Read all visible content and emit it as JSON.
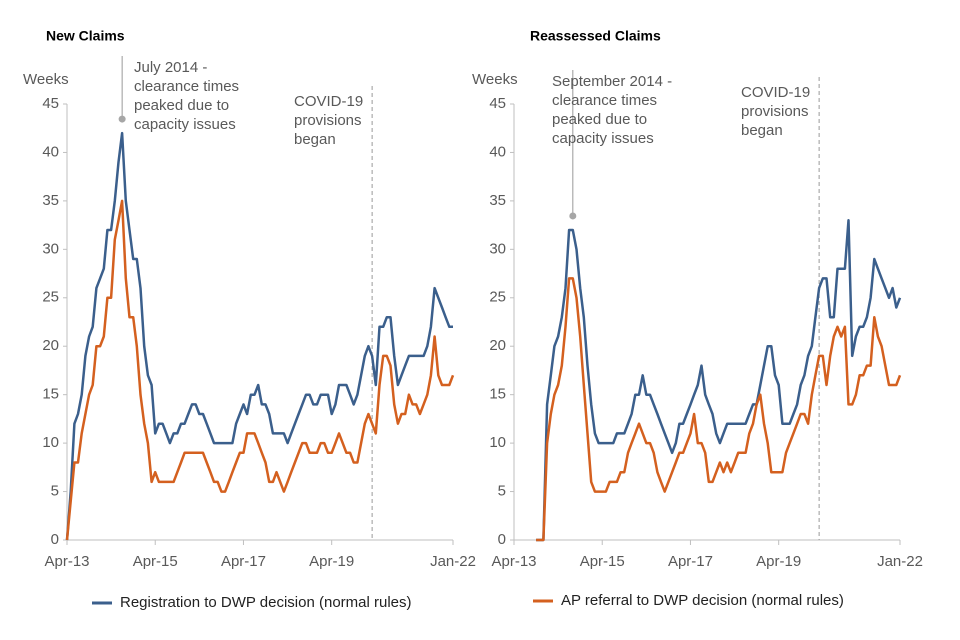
{
  "legend": [
    {
      "name": "Registration to DWP decision (normal rules)",
      "color": "#3b5f8c"
    },
    {
      "name": "AP referral to DWP decision (normal rules)",
      "color": "#d4601f"
    }
  ],
  "chart_data": [
    {
      "type": "line",
      "title": "New Claims",
      "y_label": "Weeks",
      "peak_note": [
        "July 2014 -",
        "clearance times",
        "peaked due to",
        "capacity issues"
      ],
      "covid_note": [
        "COVID-19",
        "provisions",
        "began"
      ],
      "categories": [
        "Apr-13",
        null,
        null,
        null,
        null,
        null,
        null,
        null,
        null,
        null,
        null,
        null,
        null,
        null,
        null,
        null,
        null,
        null,
        null,
        null,
        null,
        null,
        null,
        null,
        "Apr-15",
        null,
        null,
        null,
        null,
        null,
        null,
        null,
        null,
        null,
        null,
        null,
        null,
        null,
        null,
        null,
        null,
        null,
        null,
        null,
        null,
        null,
        null,
        null,
        "Apr-17",
        null,
        null,
        null,
        null,
        null,
        null,
        null,
        null,
        null,
        null,
        null,
        null,
        null,
        null,
        null,
        null,
        null,
        null,
        null,
        null,
        null,
        null,
        null,
        "Apr-19",
        null,
        null,
        null,
        null,
        null,
        null,
        null,
        null,
        null,
        null,
        null,
        null,
        null,
        null,
        null,
        null,
        null,
        null,
        null,
        null,
        null,
        null,
        null,
        null,
        null,
        null,
        null,
        null,
        null,
        null,
        null,
        null,
        "Jan-22"
      ],
      "series": [
        {
          "color": "#3b5f8c",
          "values": [
            0,
            5,
            12,
            13,
            15,
            19,
            21,
            22,
            26,
            27,
            28,
            32,
            32,
            35,
            39,
            42,
            35,
            32,
            29,
            29,
            26,
            20,
            17,
            16,
            11,
            12,
            12,
            11,
            10,
            11,
            11,
            12,
            12,
            13,
            14,
            14,
            13,
            13,
            12,
            11,
            10,
            10,
            10,
            10,
            10,
            10,
            12,
            13,
            14,
            13,
            15,
            15,
            16,
            14,
            14,
            13,
            11,
            11,
            11,
            11,
            10,
            11,
            12,
            13,
            14,
            15,
            15,
            14,
            14,
            15,
            15,
            15,
            13,
            14,
            16,
            16,
            16,
            15,
            14,
            15,
            17,
            19,
            20,
            19,
            16,
            22,
            22,
            23,
            23,
            19,
            16,
            17,
            18,
            19,
            19,
            19,
            19,
            19,
            20,
            22,
            26,
            25,
            24,
            23,
            22,
            22
          ]
        },
        {
          "color": "#d4601f",
          "values": [
            0,
            4,
            8,
            8,
            11,
            13,
            15,
            16,
            20,
            20,
            21,
            25,
            25,
            31,
            33,
            35,
            27,
            23,
            23,
            20,
            15,
            12,
            10,
            6,
            7,
            6,
            6,
            6,
            6,
            6,
            7,
            8,
            9,
            9,
            9,
            9,
            9,
            9,
            8,
            7,
            6,
            6,
            5,
            5,
            6,
            7,
            8,
            9,
            9,
            11,
            11,
            11,
            10,
            9,
            8,
            6,
            6,
            7,
            6,
            5,
            6,
            7,
            8,
            9,
            10,
            10,
            9,
            9,
            9,
            10,
            10,
            9,
            9,
            10,
            11,
            10,
            9,
            9,
            8,
            8,
            10,
            12,
            13,
            12,
            11,
            16,
            19,
            19,
            18,
            14,
            12,
            13,
            13,
            15,
            14,
            14,
            13,
            14,
            15,
            17,
            21,
            17,
            16,
            16,
            16,
            17
          ]
        }
      ],
      "ylim": [
        0,
        45
      ],
      "yticks": [
        0,
        5,
        10,
        15,
        20,
        25,
        30,
        35,
        40,
        45
      ]
    },
    {
      "type": "line",
      "title": "Reassessed Claims",
      "y_label": "Weeks",
      "peak_note": [
        "September 2014 -",
        "clearance times",
        "peaked due to",
        "capacity issues"
      ],
      "covid_note": [
        "COVID-19",
        "provisions",
        "began"
      ],
      "categories": [
        "Apr-13",
        null,
        null,
        null,
        null,
        null,
        null,
        null,
        null,
        null,
        null,
        null,
        null,
        null,
        null,
        null,
        null,
        null,
        null,
        null,
        null,
        null,
        null,
        null,
        "Apr-15",
        null,
        null,
        null,
        null,
        null,
        null,
        null,
        null,
        null,
        null,
        null,
        null,
        null,
        null,
        null,
        null,
        null,
        null,
        null,
        null,
        null,
        null,
        null,
        "Apr-17",
        null,
        null,
        null,
        null,
        null,
        null,
        null,
        null,
        null,
        null,
        null,
        null,
        null,
        null,
        null,
        null,
        null,
        null,
        null,
        null,
        null,
        null,
        null,
        "Apr-19",
        null,
        null,
        null,
        null,
        null,
        null,
        null,
        null,
        null,
        null,
        null,
        null,
        null,
        null,
        null,
        null,
        null,
        null,
        null,
        null,
        null,
        null,
        null,
        null,
        null,
        null,
        null,
        null,
        null,
        null,
        null,
        null,
        "Jan-22"
      ],
      "series": [
        {
          "color": "#3b5f8c",
          "values": [
            null,
            null,
            null,
            null,
            null,
            null,
            0,
            0,
            0,
            14,
            17,
            20,
            21,
            23,
            26,
            32,
            32,
            30,
            26,
            23,
            18,
            14,
            11,
            10,
            10,
            10,
            10,
            10,
            11,
            11,
            11,
            12,
            13,
            15,
            15,
            17,
            15,
            15,
            14,
            13,
            12,
            11,
            10,
            9,
            10,
            12,
            12,
            13,
            14,
            15,
            16,
            18,
            15,
            14,
            13,
            11,
            10,
            11,
            12,
            12,
            12,
            12,
            12,
            12,
            13,
            14,
            14,
            16,
            18,
            20,
            20,
            17,
            16,
            12,
            12,
            12,
            13,
            14,
            16,
            17,
            19,
            20,
            23,
            26,
            27,
            27,
            23,
            23,
            28,
            28,
            28,
            33,
            19,
            21,
            22,
            22,
            23,
            25,
            29,
            28,
            27,
            26,
            25,
            26,
            24,
            25
          ]
        },
        {
          "color": "#d4601f",
          "values": [
            null,
            null,
            null,
            null,
            null,
            null,
            0,
            0,
            0,
            10,
            13,
            15,
            16,
            18,
            22,
            27,
            27,
            25,
            21,
            16,
            11,
            6,
            5,
            5,
            5,
            5,
            6,
            6,
            6,
            7,
            7,
            9,
            10,
            11,
            12,
            11,
            10,
            10,
            9,
            7,
            6,
            5,
            6,
            7,
            8,
            9,
            9,
            10,
            11,
            13,
            10,
            10,
            9,
            6,
            6,
            7,
            8,
            7,
            8,
            7,
            8,
            9,
            9,
            9,
            11,
            12,
            14,
            15,
            12,
            10,
            7,
            7,
            7,
            7,
            9,
            10,
            11,
            12,
            13,
            13,
            12,
            15,
            17,
            19,
            19,
            16,
            19,
            21,
            22,
            21,
            22,
            14,
            14,
            15,
            17,
            17,
            18,
            18,
            23,
            21,
            20,
            18,
            16,
            16,
            16,
            17
          ]
        }
      ],
      "ylim": [
        0,
        45
      ],
      "yticks": [
        0,
        5,
        10,
        15,
        20,
        25,
        30,
        35,
        40,
        45
      ]
    }
  ]
}
